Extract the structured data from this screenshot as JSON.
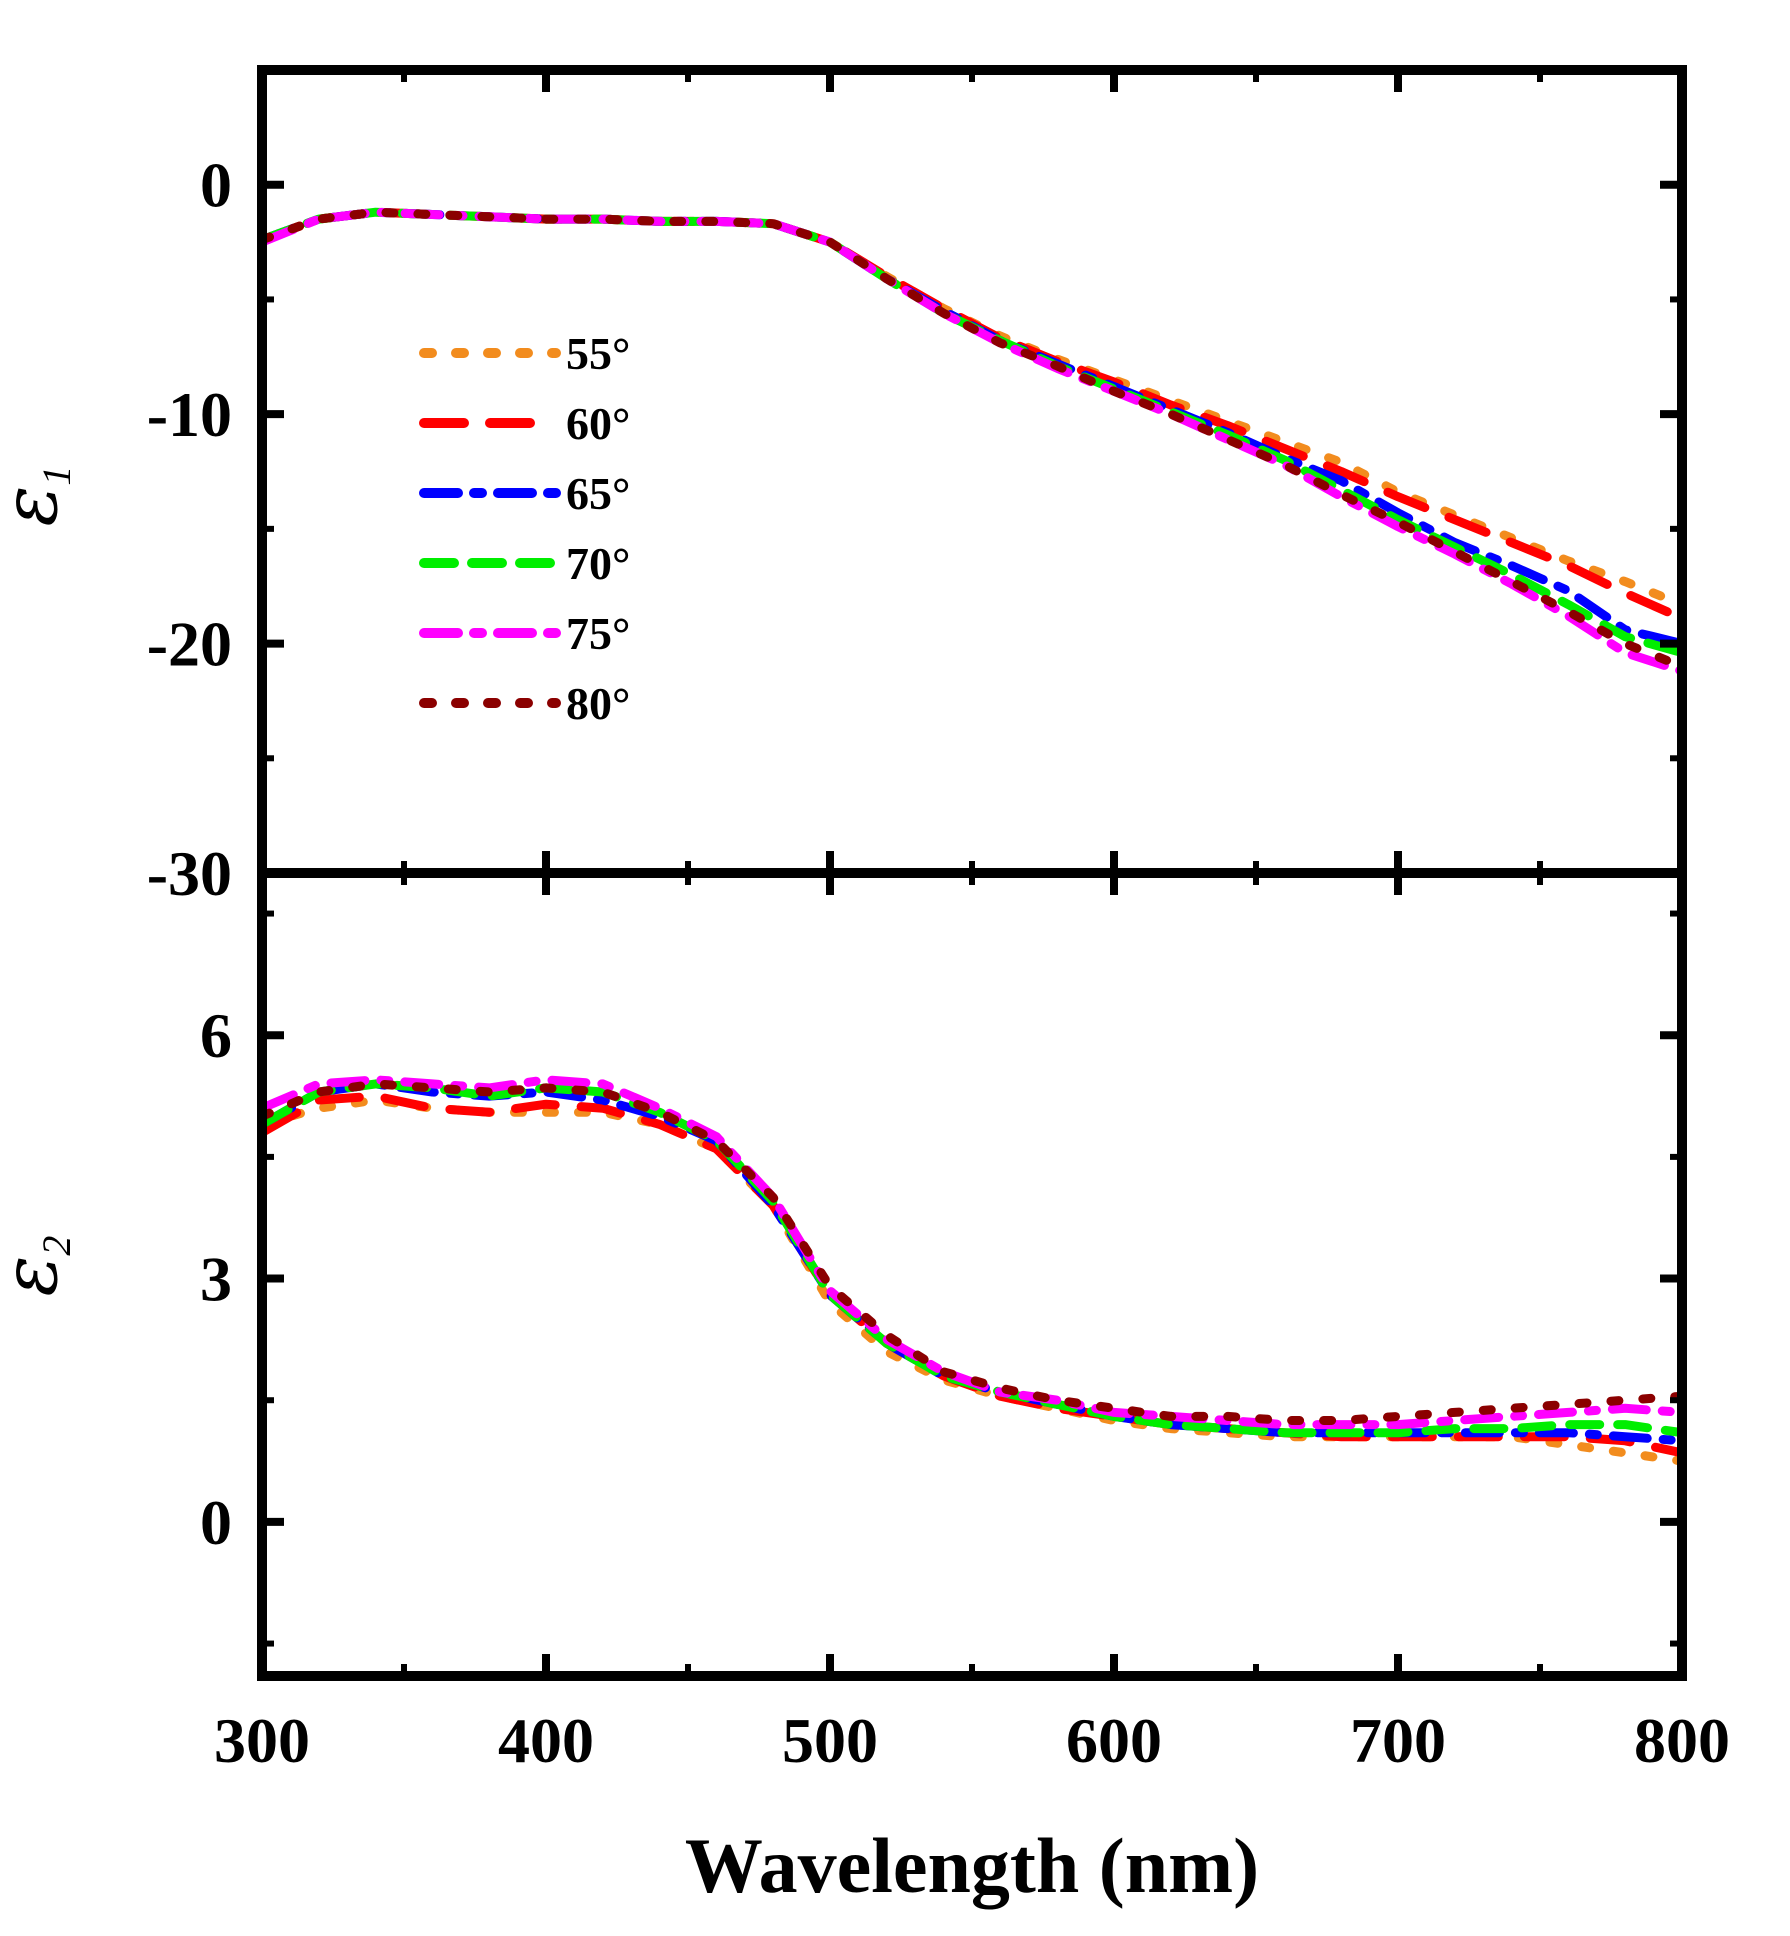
{
  "chart_data": {
    "type": "line",
    "xlabel": "Wavelength (nm)",
    "xlim": [
      300,
      800
    ],
    "x_ticks": [
      "300",
      "400",
      "500",
      "600",
      "700",
      "800"
    ],
    "x": [
      300,
      320,
      340,
      360,
      380,
      400,
      420,
      440,
      460,
      480,
      500,
      520,
      540,
      560,
      580,
      600,
      620,
      640,
      660,
      680,
      700,
      720,
      740,
      760,
      780,
      800
    ],
    "legend": {
      "placement": "top-left",
      "entries": [
        "55°",
        "60°",
        "65°",
        "70°",
        "75°",
        "80°"
      ]
    },
    "series_styles": [
      {
        "name": "55°",
        "color": "#f28c1e",
        "dash": "dot"
      },
      {
        "name": "60°",
        "color": "#ff0000",
        "dash": "long-dash"
      },
      {
        "name": "65°",
        "color": "#0000ff",
        "dash": "dash-dot"
      },
      {
        "name": "70°",
        "color": "#00ee00",
        "dash": "dash"
      },
      {
        "name": "75°",
        "color": "#ff00ff",
        "dash": "dash-dot"
      },
      {
        "name": "80°",
        "color": "#8b0000",
        "dash": "dot"
      }
    ],
    "panels": [
      {
        "id": "eps1",
        "ylabel": "ε",
        "ylabel_sub": "1",
        "ylim": [
          -30,
          5
        ],
        "y_ticks": [
          "0",
          "-10",
          "-20",
          "-30"
        ],
        "y_tick_values": [
          0,
          -10,
          -20,
          -30
        ],
        "series": [
          {
            "name": "55°",
            "values": [
              -2.4,
              -1.5,
              -1.2,
              -1.3,
              -1.4,
              -1.5,
              -1.5,
              -1.6,
              -1.6,
              -1.7,
              -2.5,
              -4.0,
              -5.4,
              -6.6,
              -7.6,
              -8.5,
              -9.4,
              -10.3,
              -11.2,
              -12.1,
              -13.4,
              -14.4,
              -15.4,
              -16.4,
              -17.3,
              -18.3
            ]
          },
          {
            "name": "60°",
            "values": [
              -2.4,
              -1.5,
              -1.2,
              -1.3,
              -1.4,
              -1.5,
              -1.5,
              -1.6,
              -1.6,
              -1.7,
              -2.5,
              -4.0,
              -5.4,
              -6.7,
              -7.7,
              -8.6,
              -9.6,
              -10.5,
              -11.5,
              -12.5,
              -13.6,
              -14.6,
              -15.6,
              -16.6,
              -17.8,
              -18.9
            ]
          },
          {
            "name": "65°",
            "values": [
              -2.4,
              -1.5,
              -1.2,
              -1.3,
              -1.4,
              -1.5,
              -1.5,
              -1.6,
              -1.6,
              -1.7,
              -2.5,
              -4.1,
              -5.5,
              -6.8,
              -7.8,
              -8.8,
              -9.8,
              -10.8,
              -11.9,
              -12.9,
              -14.3,
              -15.6,
              -16.6,
              -17.7,
              -19.4,
              -20.0
            ]
          },
          {
            "name": "70°",
            "values": [
              -2.4,
              -1.5,
              -1.2,
              -1.3,
              -1.4,
              -1.5,
              -1.5,
              -1.6,
              -1.6,
              -1.7,
              -2.5,
              -4.1,
              -5.6,
              -6.8,
              -7.9,
              -8.9,
              -9.9,
              -10.9,
              -12.0,
              -13.3,
              -14.6,
              -15.8,
              -17.0,
              -18.3,
              -19.7,
              -20.4
            ]
          },
          {
            "name": "75°",
            "values": [
              -2.5,
              -1.5,
              -1.2,
              -1.3,
              -1.4,
              -1.5,
              -1.5,
              -1.6,
              -1.6,
              -1.7,
              -2.5,
              -4.1,
              -5.6,
              -6.9,
              -8.0,
              -9.0,
              -10.0,
              -11.1,
              -12.2,
              -13.6,
              -14.9,
              -16.1,
              -17.4,
              -18.8,
              -20.4,
              -21.2
            ]
          },
          {
            "name": "80°",
            "values": [
              -2.4,
              -1.5,
              -1.2,
              -1.3,
              -1.4,
              -1.5,
              -1.5,
              -1.6,
              -1.6,
              -1.7,
              -2.5,
              -4.1,
              -5.6,
              -6.9,
              -7.9,
              -9.0,
              -10.0,
              -11.1,
              -12.2,
              -13.5,
              -14.7,
              -16.0,
              -17.3,
              -18.6,
              -20.0,
              -21.0
            ]
          }
        ]
      },
      {
        "id": "eps2",
        "ylabel": "ε",
        "ylabel_sub": "2",
        "ylim": [
          -1.9,
          8
        ],
        "y_ticks": [
          "6",
          "3",
          "0"
        ],
        "y_tick_values": [
          6,
          3,
          0
        ],
        "series": [
          {
            "name": "55°",
            "values": [
              4.9,
              5.1,
              5.2,
              5.1,
              5.05,
              5.05,
              5.05,
              4.9,
              4.6,
              3.9,
              2.7,
              2.1,
              1.75,
              1.55,
              1.4,
              1.25,
              1.15,
              1.1,
              1.05,
              1.05,
              1.05,
              1.05,
              1.05,
              0.95,
              0.85,
              0.75
            ]
          },
          {
            "name": "60°",
            "values": [
              4.8,
              5.2,
              5.25,
              5.1,
              5.05,
              5.15,
              5.1,
              4.9,
              4.6,
              3.9,
              2.8,
              2.2,
              1.8,
              1.55,
              1.4,
              1.3,
              1.2,
              1.15,
              1.1,
              1.05,
              1.05,
              1.05,
              1.05,
              1.05,
              1.0,
              0.85
            ]
          },
          {
            "name": "65°",
            "values": [
              4.9,
              5.3,
              5.4,
              5.3,
              5.25,
              5.3,
              5.2,
              5.0,
              4.7,
              3.9,
              2.8,
              2.2,
              1.8,
              1.6,
              1.45,
              1.3,
              1.2,
              1.15,
              1.1,
              1.1,
              1.1,
              1.1,
              1.1,
              1.1,
              1.05,
              1.0
            ]
          },
          {
            "name": "70°",
            "values": [
              4.9,
              5.3,
              5.4,
              5.35,
              5.25,
              5.35,
              5.3,
              5.05,
              4.7,
              3.95,
              2.8,
              2.2,
              1.8,
              1.6,
              1.45,
              1.3,
              1.2,
              1.15,
              1.1,
              1.1,
              1.1,
              1.15,
              1.15,
              1.2,
              1.2,
              1.1
            ]
          },
          {
            "name": "75°",
            "values": [
              5.1,
              5.4,
              5.45,
              5.4,
              5.35,
              5.45,
              5.4,
              5.1,
              4.75,
              4.0,
              2.85,
              2.25,
              1.85,
              1.6,
              1.5,
              1.35,
              1.3,
              1.25,
              1.2,
              1.2,
              1.2,
              1.25,
              1.3,
              1.35,
              1.4,
              1.35
            ]
          },
          {
            "name": "80°",
            "values": [
              5.0,
              5.3,
              5.4,
              5.35,
              5.3,
              5.35,
              5.3,
              5.05,
              4.7,
              4.0,
              2.9,
              2.3,
              1.85,
              1.65,
              1.5,
              1.4,
              1.3,
              1.3,
              1.25,
              1.25,
              1.3,
              1.35,
              1.4,
              1.45,
              1.5,
              1.55
            ]
          }
        ]
      }
    ]
  }
}
